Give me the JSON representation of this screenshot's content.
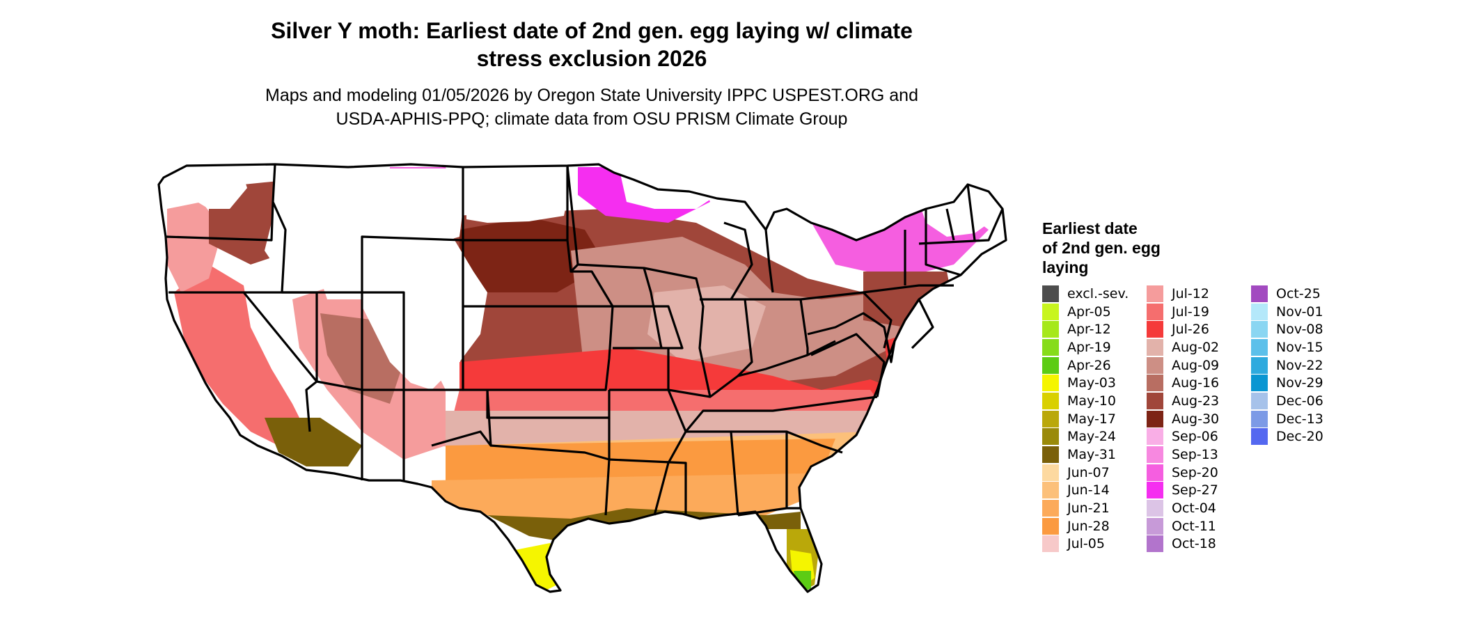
{
  "title_lines": [
    "Silver Y moth: Earliest date of 2nd gen. egg laying w/ climate",
    "stress exclusion 2026"
  ],
  "subtitle_lines": [
    "Maps and modeling 01/05/2026 by Oregon State University IPPC USPEST.ORG and",
    "USDA-APHIS-PPQ; climate data from OSU PRISM Climate Group"
  ],
  "legend": {
    "title_lines": [
      "Earliest date",
      "of 2nd gen. egg",
      "laying"
    ],
    "columns": [
      [
        {
          "label": "excl.-sev.",
          "color": "#4d4d4d"
        },
        {
          "label": "Apr-05",
          "color": "#c8f51e"
        },
        {
          "label": "Apr-12",
          "color": "#a6e81a"
        },
        {
          "label": "Apr-19",
          "color": "#86dc1a"
        },
        {
          "label": "Apr-26",
          "color": "#5ccc14"
        },
        {
          "label": "May-03",
          "color": "#f5f500"
        },
        {
          "label": "May-10",
          "color": "#d9d000"
        },
        {
          "label": "May-17",
          "color": "#baa80a"
        },
        {
          "label": "May-24",
          "color": "#9a8a0a"
        },
        {
          "label": "May-31",
          "color": "#7a600a"
        },
        {
          "label": "Jun-07",
          "color": "#fdd9a0"
        },
        {
          "label": "Jun-14",
          "color": "#fcc07a"
        },
        {
          "label": "Jun-21",
          "color": "#fcaa5a"
        },
        {
          "label": "Jun-28",
          "color": "#fb9a40"
        },
        {
          "label": "Jul-05",
          "color": "#f7c9c9"
        }
      ],
      [
        {
          "label": "Jul-12",
          "color": "#f59c9c"
        },
        {
          "label": "Jul-19",
          "color": "#f56e6e"
        },
        {
          "label": "Jul-26",
          "color": "#f53a3a"
        },
        {
          "label": "Aug-02",
          "color": "#e2b2aa"
        },
        {
          "label": "Aug-09",
          "color": "#cd8f85"
        },
        {
          "label": "Aug-16",
          "color": "#b86e62"
        },
        {
          "label": "Aug-23",
          "color": "#a0463a"
        },
        {
          "label": "Aug-30",
          "color": "#7d2415"
        },
        {
          "label": "Sep-06",
          "color": "#f9aee6"
        },
        {
          "label": "Sep-13",
          "color": "#f788e0"
        },
        {
          "label": "Sep-20",
          "color": "#f55ee0"
        },
        {
          "label": "Sep-27",
          "color": "#f52ef0"
        },
        {
          "label": "Oct-04",
          "color": "#dcc4e6"
        },
        {
          "label": "Oct-11",
          "color": "#c79ad8"
        },
        {
          "label": "Oct-18",
          "color": "#b274cc"
        }
      ],
      [
        {
          "label": "Oct-25",
          "color": "#a24ac0"
        },
        {
          "label": "Nov-01",
          "color": "#b4e8fa"
        },
        {
          "label": "Nov-08",
          "color": "#8ad6f2"
        },
        {
          "label": "Nov-15",
          "color": "#5cc0ea"
        },
        {
          "label": "Nov-22",
          "color": "#2eaade"
        },
        {
          "label": "Nov-29",
          "color": "#0a96d2"
        },
        {
          "label": "Dec-06",
          "color": "#a6c2ea"
        },
        {
          "label": "Dec-13",
          "color": "#7c9ae6"
        },
        {
          "label": "Dec-20",
          "color": "#5468f0"
        }
      ]
    ]
  }
}
